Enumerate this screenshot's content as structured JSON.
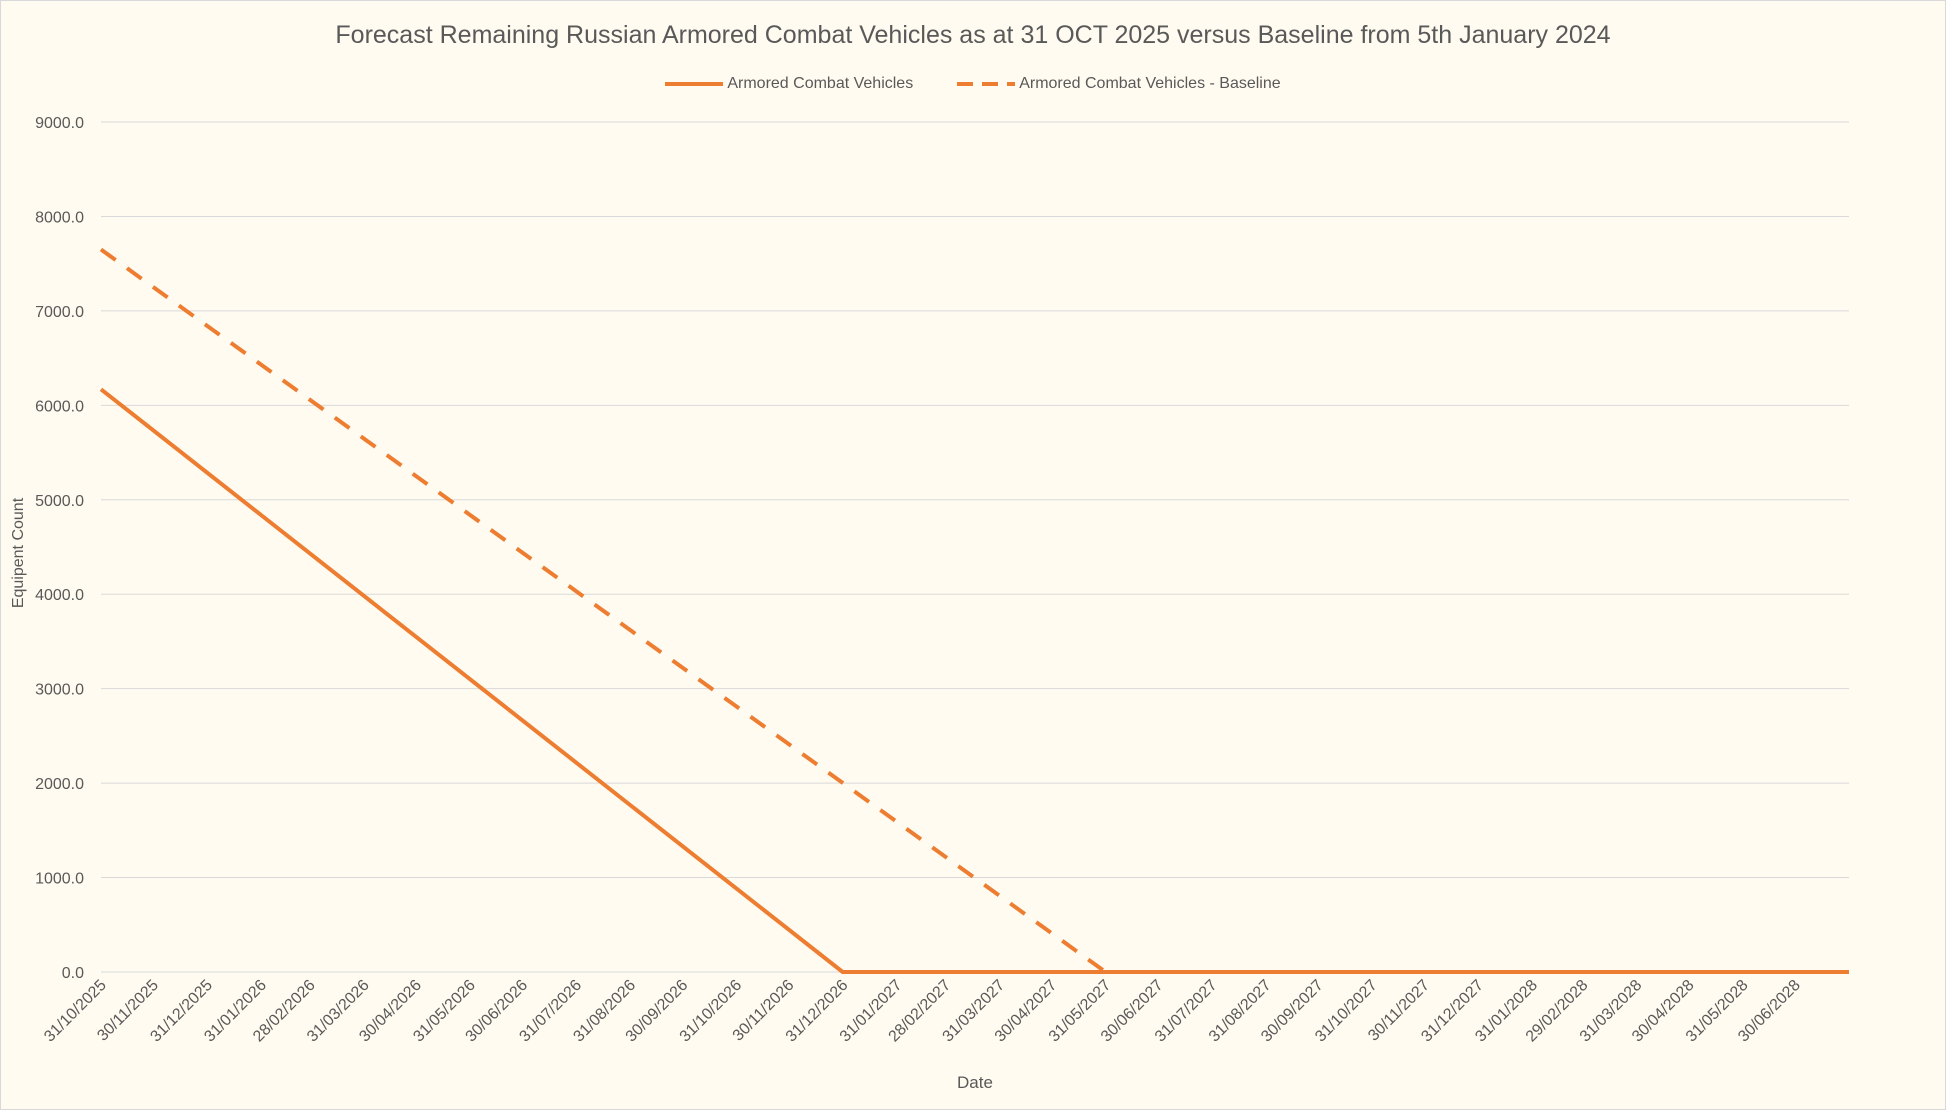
{
  "chart_data": {
    "type": "line",
    "title": "Forecast Remaining Russian Armored Combat Vehicles as at 31 OCT 2025 versus Baseline from 5th January 2024",
    "xlabel": "Date",
    "ylabel": "Equipent Count",
    "ylim": [
      0,
      9000
    ],
    "yticks": [
      "0.0",
      "1000.0",
      "2000.0",
      "3000.0",
      "4000.0",
      "5000.0",
      "6000.0",
      "7000.0",
      "8000.0",
      "9000.0"
    ],
    "categories": [
      "31/10/2025",
      "30/11/2025",
      "31/12/2025",
      "31/01/2026",
      "28/02/2026",
      "31/03/2026",
      "30/04/2026",
      "31/05/2026",
      "30/06/2026",
      "31/07/2026",
      "31/08/2026",
      "30/09/2026",
      "31/10/2026",
      "30/11/2026",
      "31/12/2026",
      "31/01/2027",
      "28/02/2027",
      "31/03/2027",
      "30/04/2027",
      "31/05/2027",
      "30/06/2027",
      "31/07/2027",
      "31/08/2027",
      "30/09/2027",
      "31/10/2027",
      "30/11/2027",
      "31/12/2027",
      "31/01/2028",
      "29/02/2028",
      "31/03/2028",
      "30/04/2028",
      "31/05/2028",
      "30/06/2028"
    ],
    "x_end": "31/07/2028",
    "legend_position": "top",
    "grid": true,
    "series": [
      {
        "name": "Armored Combat Vehicles",
        "style": "solid",
        "color": "#ed7d31",
        "points": [
          [
            "31/10/2025",
            6170
          ],
          [
            "31/12/2026",
            0
          ],
          [
            "31/07/2028",
            0
          ]
        ]
      },
      {
        "name": "Armored Combat Vehicles - Baseline",
        "style": "dashed",
        "color": "#ed7d31",
        "points": [
          [
            "31/10/2025",
            7650
          ],
          [
            "31/05/2027",
            0
          ],
          [
            "31/07/2028",
            0
          ]
        ]
      }
    ]
  }
}
